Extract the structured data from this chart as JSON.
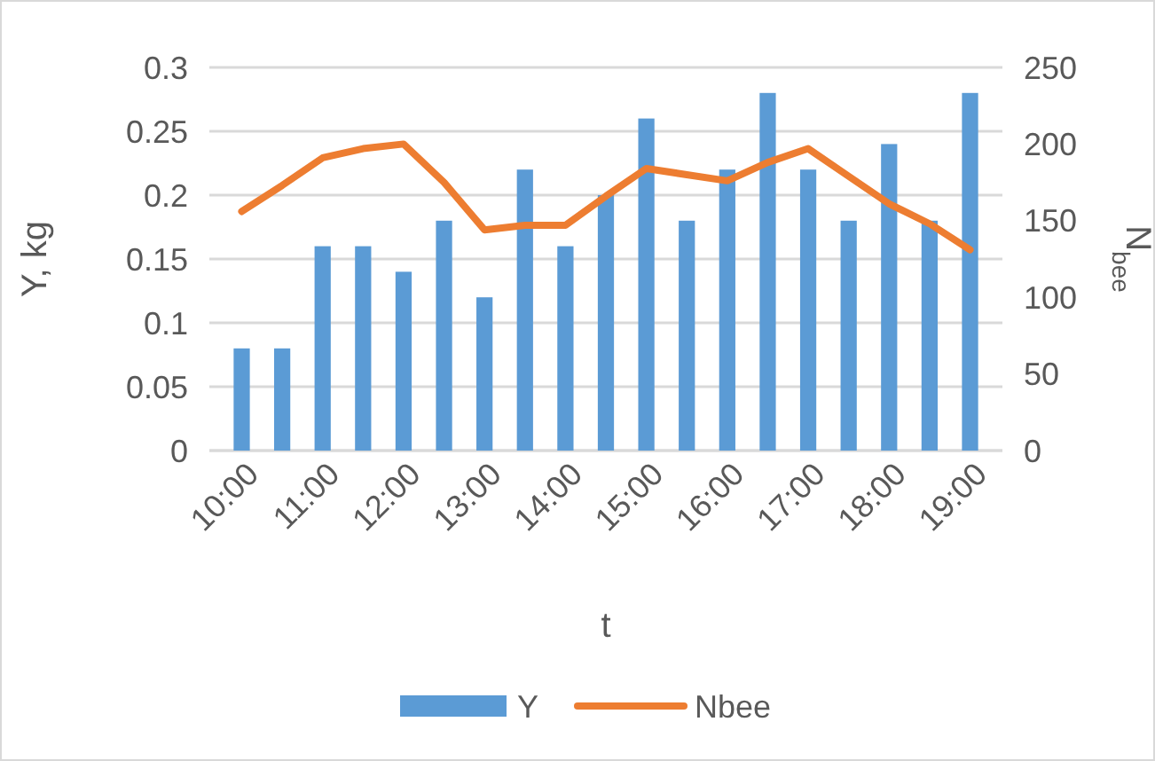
{
  "chart_data": {
    "type": "bar",
    "categories": [
      "10:00",
      null,
      "11:00",
      null,
      "12:00",
      null,
      "13:00",
      null,
      "14:00",
      null,
      "15:00",
      null,
      "16:00",
      null,
      "17:00",
      null,
      "18:00",
      null,
      "19:00"
    ],
    "series": [
      {
        "name": "Y",
        "color": "#5b9bd5",
        "values": [
          0.08,
          0.08,
          0.16,
          0.16,
          0.14,
          0.18,
          0.12,
          0.22,
          0.16,
          0.2,
          0.26,
          0.18,
          0.22,
          0.28,
          0.22,
          0.18,
          0.24,
          0.18,
          0.28
        ]
      },
      {
        "name": "Nbee",
        "type": "line",
        "axis": "y2",
        "color": "#ed7d31",
        "values": [
          156,
          173,
          191,
          197,
          200,
          175,
          144,
          147,
          147,
          166,
          184,
          180,
          176,
          188,
          197,
          179,
          161,
          148,
          131
        ]
      }
    ],
    "xlabel": "t",
    "ylabel": "Y, kg",
    "y2label": "N$_{bee}$",
    "ylim": [
      0,
      0.3
    ],
    "yticks": [
      0,
      0.05,
      0.1,
      0.15,
      0.2,
      0.25,
      0.3
    ],
    "y2lim": [
      0,
      250
    ],
    "y2ticks": [
      0,
      50,
      100,
      150,
      200,
      250
    ],
    "grid": "y",
    "legend": "bottom",
    "marker": "none",
    "line_style": "solid"
  }
}
